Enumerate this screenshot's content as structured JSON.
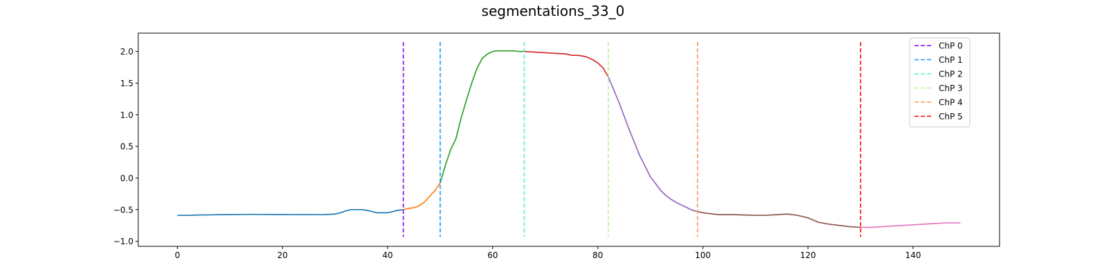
{
  "chart_data": {
    "type": "line",
    "title": "segmentations_33_0",
    "xlabel": "",
    "ylabel": "",
    "xlim": [
      -7.45,
      156.45
    ],
    "ylim": [
      -1.08,
      2.29
    ],
    "xticks": [
      0,
      20,
      40,
      60,
      80,
      100,
      120,
      140
    ],
    "yticks": [
      -1.0,
      -0.5,
      0.0,
      0.5,
      1.0,
      1.5,
      2.0
    ],
    "ytick_labels": [
      "−1.0",
      "−0.5",
      "0.0",
      "0.5",
      "1.0",
      "1.5",
      "2.0"
    ],
    "grid": false,
    "legend_position": "top-right",
    "segments": [
      {
        "color": "#1f77b4",
        "x": [
          0,
          2,
          4,
          6,
          8,
          10,
          12,
          14,
          16,
          18,
          20,
          22,
          24,
          26,
          28,
          30,
          31,
          32,
          33,
          34,
          35,
          36,
          37,
          38,
          39,
          40,
          41,
          42,
          43
        ],
        "y": [
          -0.59,
          -0.59,
          -0.585,
          -0.583,
          -0.58,
          -0.578,
          -0.576,
          -0.575,
          -0.576,
          -0.577,
          -0.578,
          -0.579,
          -0.578,
          -0.579,
          -0.578,
          -0.57,
          -0.55,
          -0.52,
          -0.5,
          -0.5,
          -0.5,
          -0.51,
          -0.53,
          -0.55,
          -0.55,
          -0.55,
          -0.53,
          -0.51,
          -0.5
        ]
      },
      {
        "color": "#ff7f0e",
        "x": [
          43,
          44,
          45,
          46,
          47,
          48,
          49,
          50
        ],
        "y": [
          -0.5,
          -0.48,
          -0.47,
          -0.44,
          -0.38,
          -0.29,
          -0.2,
          -0.08
        ]
      },
      {
        "color": "#2ca02c",
        "x": [
          50,
          51,
          52,
          53,
          54,
          55,
          56,
          57,
          58,
          59,
          60,
          61,
          62,
          63,
          64,
          65,
          66
        ],
        "y": [
          -0.08,
          0.2,
          0.45,
          0.62,
          0.95,
          1.23,
          1.5,
          1.73,
          1.89,
          1.96,
          2.0,
          2.01,
          2.01,
          2.01,
          2.01,
          2.0,
          2.0
        ]
      },
      {
        "color": "#d62728",
        "x": [
          66,
          68,
          70,
          72,
          74,
          75,
          76,
          77,
          78,
          79,
          80,
          81,
          82
        ],
        "y": [
          2.0,
          1.99,
          1.98,
          1.97,
          1.96,
          1.94,
          1.94,
          1.93,
          1.91,
          1.87,
          1.82,
          1.74,
          1.6
        ]
      },
      {
        "color": "#9467bd",
        "x": [
          82,
          84,
          86,
          88,
          90,
          92,
          93,
          94,
          95,
          96,
          97,
          98,
          99
        ],
        "y": [
          1.6,
          1.2,
          0.76,
          0.35,
          0.02,
          -0.2,
          -0.28,
          -0.34,
          -0.39,
          -0.43,
          -0.47,
          -0.51,
          -0.53
        ]
      },
      {
        "color": "#8c564b",
        "x": [
          99,
          100,
          101,
          102,
          103,
          104,
          106,
          108,
          110,
          112,
          114,
          116,
          118,
          120,
          122,
          124,
          126,
          128,
          130
        ],
        "y": [
          -0.53,
          -0.55,
          -0.56,
          -0.57,
          -0.58,
          -0.58,
          -0.58,
          -0.585,
          -0.59,
          -0.59,
          -0.58,
          -0.57,
          -0.59,
          -0.63,
          -0.7,
          -0.73,
          -0.75,
          -0.77,
          -0.78
        ]
      },
      {
        "color": "#e377c2",
        "x": [
          130,
          132,
          134,
          136,
          138,
          140,
          142,
          144,
          146,
          148,
          149
        ],
        "y": [
          -0.78,
          -0.78,
          -0.77,
          -0.76,
          -0.75,
          -0.74,
          -0.73,
          -0.72,
          -0.71,
          -0.71,
          -0.71
        ]
      }
    ],
    "change_points": [
      {
        "name": "ChP 0",
        "x": 43,
        "color": "#7f00ff"
      },
      {
        "name": "ChP 1",
        "x": 50,
        "color": "#1996f3"
      },
      {
        "name": "ChP 2",
        "x": 66,
        "color": "#4df3ce"
      },
      {
        "name": "ChP 3",
        "x": 82,
        "color": "#b2f396"
      },
      {
        "name": "ChP 4",
        "x": 99,
        "color": "#ff964f"
      },
      {
        "name": "ChP 5",
        "x": 130,
        "color": "#ff0000"
      }
    ],
    "vline_range": [
      -0.93,
      2.15
    ]
  }
}
